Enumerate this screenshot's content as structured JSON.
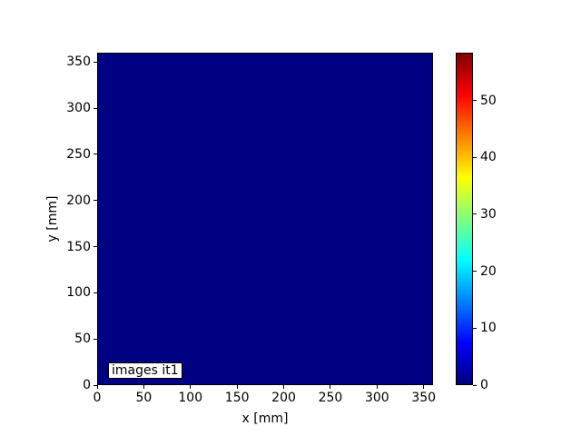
{
  "chart_data": {
    "type": "heatmap",
    "title": "",
    "xlabel": "x [mm]",
    "ylabel": "y [mm]",
    "annotation": "images it1",
    "x_range": [
      0,
      360
    ],
    "y_range": [
      0,
      360
    ],
    "x_ticks": [
      0,
      50,
      100,
      150,
      200,
      250,
      300,
      350
    ],
    "y_ticks": [
      0,
      50,
      100,
      150,
      200,
      250,
      300,
      350
    ],
    "uniform_value": 0,
    "grid": false,
    "colormap": "jet",
    "colorbar": {
      "position": "right",
      "vmin": 0,
      "vmax": 58.4,
      "ticks": [
        0,
        10,
        20,
        30,
        40,
        50
      ]
    },
    "colors": {
      "field_fill": "#000082",
      "axis": "#000000",
      "background": "#ffffff",
      "jet_stops": [
        "#000080",
        "#0000ff",
        "#00ffff",
        "#ffff00",
        "#ff0000",
        "#800000"
      ],
      "jet_stop_positions": [
        0,
        0.125,
        0.375,
        0.625,
        0.875,
        1
      ]
    }
  }
}
